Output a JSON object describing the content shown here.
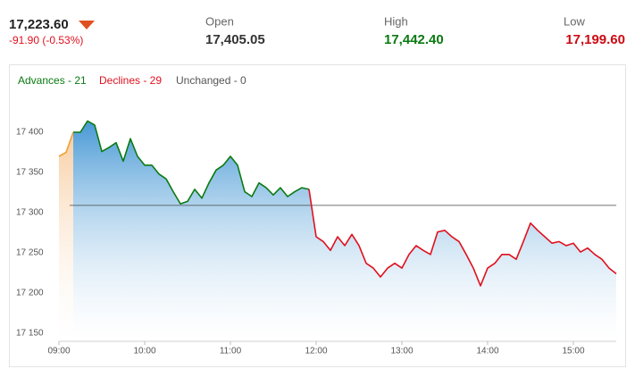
{
  "quote": {
    "price": "17,223.60",
    "change": "-91.90 (-0.53%)",
    "open_label": "Open",
    "open": "17,405.05",
    "high_label": "High",
    "high": "17,442.40",
    "low_label": "Low",
    "low": "17,199.60"
  },
  "chart_data": {
    "type": "line",
    "legend": [
      "Advances - 21",
      "Declines - 29",
      "Unchanged - 0"
    ],
    "x": [
      "09:00",
      "09:05",
      "09:10",
      "09:15",
      "09:20",
      "09:25",
      "09:30",
      "09:35",
      "09:40",
      "09:45",
      "09:50",
      "09:55",
      "10:00",
      "10:05",
      "10:10",
      "10:15",
      "10:20",
      "10:25",
      "10:30",
      "10:35",
      "10:40",
      "10:45",
      "10:50",
      "10:55",
      "11:00",
      "11:05",
      "11:10",
      "11:15",
      "11:20",
      "11:25",
      "11:30",
      "11:35",
      "11:40",
      "11:45",
      "11:50",
      "11:55",
      "12:00",
      "12:05",
      "12:10",
      "12:15",
      "12:20",
      "12:25",
      "12:30",
      "12:35",
      "12:40",
      "12:45",
      "12:50",
      "12:55",
      "13:00",
      "13:05",
      "13:10",
      "13:15",
      "13:20",
      "13:25",
      "13:30",
      "13:35",
      "13:40",
      "13:45",
      "13:50",
      "13:55",
      "14:00",
      "14:05",
      "14:10",
      "14:15",
      "14:20",
      "14:25",
      "14:30",
      "14:35",
      "14:40",
      "14:45",
      "14:50",
      "14:55",
      "15:00",
      "15:05",
      "15:10",
      "15:15",
      "15:20",
      "15:25",
      "15:30"
    ],
    "values": [
      17370,
      17375,
      17400,
      17400,
      17414,
      17409,
      17376,
      17381,
      17387,
      17364,
      17392,
      17370,
      17359,
      17359,
      17348,
      17342,
      17326,
      17311,
      17314,
      17329,
      17318,
      17337,
      17353,
      17359,
      17370,
      17359,
      17326,
      17320,
      17337,
      17331,
      17322,
      17331,
      17320,
      17326,
      17331,
      17329,
      17270,
      17264,
      17253,
      17270,
      17259,
      17273,
      17259,
      17237,
      17231,
      17220,
      17231,
      17237,
      17231,
      17248,
      17259,
      17253,
      17248,
      17276,
      17278,
      17270,
      17264,
      17248,
      17231,
      17209,
      17231,
      17237,
      17248,
      17248,
      17242,
      17264,
      17287,
      17278,
      17270,
      17262,
      17264,
      17259,
      17262,
      17251,
      17256,
      17248,
      17242,
      17231,
      17224
    ],
    "reference_line": 17309,
    "preopen_until": "09:10",
    "colors": {
      "preopen": "#f0a030",
      "up": "#0a7a12",
      "down": "#e0101e",
      "area": "#3d93d3",
      "preopen_area": "#f7c99a",
      "reference": "#444444"
    },
    "xlim": [
      "09:00",
      "15:30"
    ],
    "xticks": [
      "09:00",
      "10:00",
      "11:00",
      "12:00",
      "13:00",
      "14:00",
      "15:00"
    ],
    "ylim": [
      17140,
      17450
    ],
    "yticks": [
      {
        "value": 17150,
        "label": "17 150"
      },
      {
        "value": 17200,
        "label": "17 200"
      },
      {
        "value": 17250,
        "label": "17 250"
      },
      {
        "value": 17300,
        "label": "17 300"
      },
      {
        "value": 17350,
        "label": "17 350"
      },
      {
        "value": 17400,
        "label": "17 400"
      }
    ],
    "grid": false
  }
}
